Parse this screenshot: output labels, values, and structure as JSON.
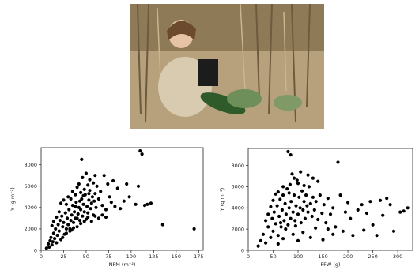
{
  "photo": {
    "subject": "woman crouching with a large green squash in a dry maize field"
  },
  "chart_data": [
    {
      "type": "scatter",
      "xlabel": "NFM (m⁻²)",
      "ylabel": "Y (g m⁻²)",
      "xlim": [
        0,
        180
      ],
      "ylim": [
        0,
        9600
      ],
      "xticks": [
        "0",
        "25",
        "50",
        "75",
        "100",
        "125",
        "150",
        "175"
      ],
      "yticks": [
        "0",
        "2000",
        "4000",
        "6000",
        "8000"
      ],
      "grid": false,
      "color": "#000000",
      "points": [
        [
          6,
          200
        ],
        [
          8,
          600
        ],
        [
          9,
          300
        ],
        [
          10,
          900
        ],
        [
          11,
          1200
        ],
        [
          12,
          500
        ],
        [
          13,
          800
        ],
        [
          14,
          1600
        ],
        [
          15,
          1100
        ],
        [
          16,
          2000
        ],
        [
          17,
          700
        ],
        [
          18,
          1400
        ],
        [
          19,
          2400
        ],
        [
          20,
          1800
        ],
        [
          21,
          2800
        ],
        [
          22,
          1000
        ],
        [
          23,
          3200
        ],
        [
          24,
          2200
        ],
        [
          25,
          2600
        ],
        [
          26,
          1500
        ],
        [
          27,
          3500
        ],
        [
          28,
          2000
        ],
        [
          29,
          3000
        ],
        [
          30,
          2400
        ],
        [
          31,
          3800
        ],
        [
          32,
          1800
        ],
        [
          33,
          2800
        ],
        [
          34,
          3300
        ],
        [
          35,
          4200
        ],
        [
          36,
          2600
        ],
        [
          37,
          3600
        ],
        [
          38,
          3000
        ],
        [
          39,
          4500
        ],
        [
          40,
          2200
        ],
        [
          41,
          3400
        ],
        [
          42,
          4000
        ],
        [
          43,
          2800
        ],
        [
          44,
          3800
        ],
        [
          45,
          4800
        ],
        [
          46,
          3200
        ],
        [
          47,
          4300
        ],
        [
          48,
          3600
        ],
        [
          49,
          5200
        ],
        [
          50,
          2900
        ],
        [
          51,
          4100
        ],
        [
          52,
          3500
        ],
        [
          53,
          4700
        ],
        [
          54,
          5600
        ],
        [
          55,
          3900
        ],
        [
          56,
          4400
        ],
        [
          57,
          5000
        ],
        [
          58,
          3300
        ],
        [
          59,
          4600
        ],
        [
          60,
          5300
        ],
        [
          61,
          4000
        ],
        [
          62,
          6000
        ],
        [
          64,
          4800
        ],
        [
          66,
          5500
        ],
        [
          68,
          4200
        ],
        [
          70,
          7000
        ],
        [
          72,
          3800
        ],
        [
          74,
          6200
        ],
        [
          76,
          5000
        ],
        [
          78,
          4500
        ],
        [
          80,
          6500
        ],
        [
          82,
          4100
        ],
        [
          85,
          5800
        ],
        [
          88,
          3900
        ],
        [
          92,
          4600
        ],
        [
          95,
          6200
        ],
        [
          98,
          5000
        ],
        [
          105,
          4300
        ],
        [
          108,
          6000
        ],
        [
          110,
          9300
        ],
        [
          112,
          9000
        ],
        [
          115,
          4200
        ],
        [
          118,
          4300
        ],
        [
          122,
          4400
        ],
        [
          135,
          2400
        ],
        [
          170,
          2000
        ],
        [
          20,
          3600
        ],
        [
          22,
          4400
        ],
        [
          25,
          4700
        ],
        [
          28,
          4300
        ],
        [
          30,
          5000
        ],
        [
          33,
          4800
        ],
        [
          35,
          5500
        ],
        [
          38,
          5200
        ],
        [
          40,
          5900
        ],
        [
          42,
          6200
        ],
        [
          44,
          5400
        ],
        [
          46,
          6800
        ],
        [
          48,
          5700
        ],
        [
          50,
          7200
        ],
        [
          52,
          6100
        ],
        [
          54,
          6600
        ],
        [
          45,
          8500
        ],
        [
          58,
          6300
        ],
        [
          60,
          7000
        ],
        [
          32,
          2000
        ],
        [
          36,
          2100
        ],
        [
          40,
          3000
        ],
        [
          44,
          2500
        ],
        [
          48,
          2700
        ],
        [
          52,
          3100
        ],
        [
          56,
          2700
        ],
        [
          60,
          3200
        ],
        [
          64,
          3000
        ],
        [
          68,
          3300
        ],
        [
          72,
          3100
        ],
        [
          14,
          2700
        ],
        [
          17,
          3100
        ],
        [
          12,
          2300
        ],
        [
          24,
          1200
        ],
        [
          28,
          1600
        ],
        [
          34,
          1900
        ],
        [
          38,
          4100
        ],
        [
          43,
          4600
        ],
        [
          47,
          5100
        ],
        [
          53,
          5300
        ]
      ]
    },
    {
      "type": "scatter",
      "xlabel": "FFW (g)",
      "ylabel": "Y (g m⁻²)",
      "xlim": [
        0,
        330
      ],
      "ylim": [
        0,
        9600
      ],
      "xticks": [
        "0",
        "50",
        "100",
        "150",
        "200",
        "250",
        "300"
      ],
      "yticks": [
        "0",
        "2000",
        "4000",
        "6000",
        "8000"
      ],
      "grid": false,
      "color": "#000000",
      "points": [
        [
          20,
          400
        ],
        [
          25,
          900
        ],
        [
          30,
          1500
        ],
        [
          35,
          700
        ],
        [
          40,
          2200
        ],
        [
          45,
          1200
        ],
        [
          48,
          3000
        ],
        [
          50,
          1800
        ],
        [
          52,
          3600
        ],
        [
          55,
          2500
        ],
        [
          58,
          4200
        ],
        [
          60,
          1400
        ],
        [
          62,
          3200
        ],
        [
          64,
          4800
        ],
        [
          66,
          2200
        ],
        [
          68,
          3800
        ],
        [
          70,
          5200
        ],
        [
          72,
          2800
        ],
        [
          74,
          4400
        ],
        [
          76,
          3400
        ],
        [
          78,
          5800
        ],
        [
          80,
          2400
        ],
        [
          82,
          4000
        ],
        [
          84,
          6200
        ],
        [
          85,
          3000
        ],
        [
          86,
          4600
        ],
        [
          88,
          7200
        ],
        [
          90,
          3600
        ],
        [
          92,
          5200
        ],
        [
          94,
          2800
        ],
        [
          96,
          4200
        ],
        [
          98,
          6600
        ],
        [
          100,
          3400
        ],
        [
          102,
          5000
        ],
        [
          104,
          4000
        ],
        [
          106,
          2600
        ],
        [
          108,
          5600
        ],
        [
          110,
          3800
        ],
        [
          112,
          4600
        ],
        [
          114,
          3000
        ],
        [
          116,
          5200
        ],
        [
          118,
          4200
        ],
        [
          120,
          3600
        ],
        [
          122,
          6000
        ],
        [
          125,
          4400
        ],
        [
          128,
          3200
        ],
        [
          130,
          5000
        ],
        [
          133,
          3800
        ],
        [
          136,
          4600
        ],
        [
          140,
          2900
        ],
        [
          144,
          5200
        ],
        [
          148,
          3500
        ],
        [
          152,
          4300
        ],
        [
          156,
          2600
        ],
        [
          160,
          4900
        ],
        [
          165,
          3400
        ],
        [
          170,
          4000
        ],
        [
          175,
          2200
        ],
        [
          180,
          8300
        ],
        [
          185,
          5200
        ],
        [
          190,
          1800
        ],
        [
          195,
          3600
        ],
        [
          200,
          4500
        ],
        [
          205,
          3000
        ],
        [
          210,
          1400
        ],
        [
          220,
          3800
        ],
        [
          228,
          4300
        ],
        [
          232,
          1900
        ],
        [
          238,
          3500
        ],
        [
          245,
          4600
        ],
        [
          250,
          2400
        ],
        [
          258,
          1400
        ],
        [
          265,
          4700
        ],
        [
          270,
          3300
        ],
        [
          278,
          4900
        ],
        [
          285,
          4300
        ],
        [
          292,
          1800
        ],
        [
          305,
          3600
        ],
        [
          312,
          3700
        ],
        [
          320,
          4000
        ],
        [
          80,
          9300
        ],
        [
          85,
          9000
        ],
        [
          60,
          600
        ],
        [
          70,
          1100
        ],
        [
          90,
          1500
        ],
        [
          100,
          900
        ],
        [
          110,
          1700
        ],
        [
          75,
          2000
        ],
        [
          95,
          2300
        ],
        [
          65,
          2600
        ],
        [
          92,
          6800
        ],
        [
          100,
          6300
        ],
        [
          82,
          5400
        ],
        [
          112,
          6100
        ],
        [
          105,
          7400
        ],
        [
          120,
          7100
        ],
        [
          130,
          6800
        ],
        [
          140,
          6500
        ],
        [
          70,
          6000
        ],
        [
          60,
          5500
        ],
        [
          40,
          3400
        ],
        [
          45,
          4100
        ],
        [
          35,
          2800
        ],
        [
          50,
          4700
        ],
        [
          55,
          5300
        ],
        [
          150,
          1000
        ],
        [
          160,
          2000
        ],
        [
          170,
          1500
        ],
        [
          125,
          1200
        ],
        [
          135,
          2100
        ]
      ]
    }
  ]
}
